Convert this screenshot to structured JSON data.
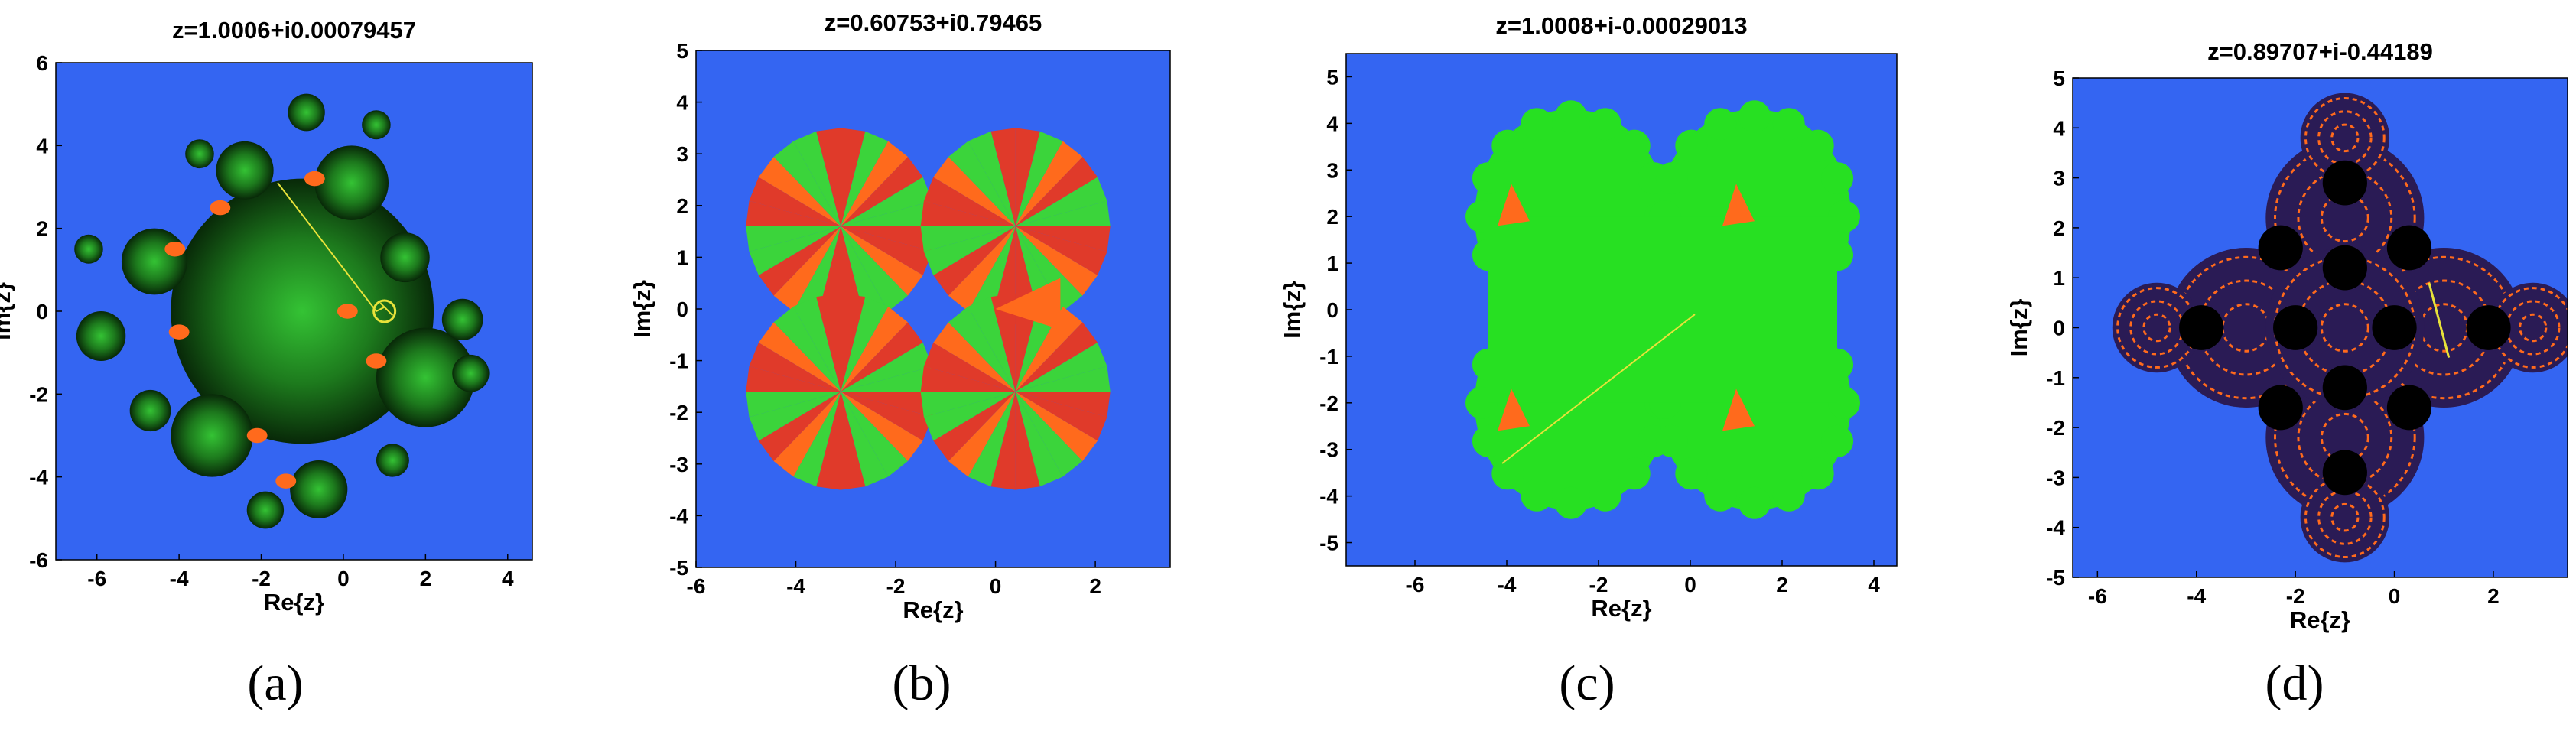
{
  "chart_data": [
    {
      "type": "heatmap",
      "title": "z=1.0006+i0.00079457",
      "xlabel": "Re{z}",
      "ylabel": "Im{z}",
      "xlim": [
        -7,
        4.6
      ],
      "ylim": [
        -6,
        6
      ],
      "xticks": [
        "-6",
        "-4",
        "-2",
        "0",
        "2",
        "4"
      ],
      "yticks": [
        "-6",
        "-4",
        "-2",
        "0",
        "2",
        "4",
        "6"
      ],
      "caption": "(a)",
      "colors": {
        "background": "#3465f2",
        "fractal_dark": "#082808",
        "fractal_light": "#34c334",
        "basin_orange": "#ff6a1c",
        "orbit": "#e7e23a"
      }
    },
    {
      "type": "heatmap",
      "title": "z=0.60753+i0.79465",
      "xlabel": "Re{z}",
      "ylabel": "Im{z}",
      "xlim": [
        -6,
        3.5
      ],
      "ylim": [
        -5,
        5
      ],
      "xticks": [
        "-6",
        "-4",
        "-2",
        "0",
        "2"
      ],
      "yticks": [
        "-5",
        "-4",
        "-3",
        "-2",
        "-1",
        "0",
        "1",
        "2",
        "3",
        "4",
        "5"
      ],
      "caption": "(b)",
      "colors": {
        "background": "#3465f2",
        "basin_red": "#e03a2a",
        "basin_green": "#3bd43b",
        "basin_orange": "#ff6a1c"
      }
    },
    {
      "type": "heatmap",
      "title": "z=1.0008+i-0.00029013",
      "xlabel": "Re{z}",
      "ylabel": "Im{z}",
      "xlim": [
        -7.5,
        4.5
      ],
      "ylim": [
        -5.5,
        5.5
      ],
      "xticks": [
        "-6",
        "-4",
        "-2",
        "0",
        "2",
        "4"
      ],
      "yticks": [
        "-5",
        "-4",
        "-3",
        "-2",
        "-1",
        "0",
        "1",
        "2",
        "3",
        "4",
        "5"
      ],
      "caption": "(c)",
      "colors": {
        "background": "#3465f2",
        "basin_green": "#27e022",
        "basin_orange": "#ff6a1c",
        "orbit": "#e7e23a"
      }
    },
    {
      "type": "heatmap",
      "title": "z=0.89707+i-0.44189",
      "xlabel": "Re{z}",
      "ylabel": "Im{z}",
      "xlim": [
        -6.5,
        3.5
      ],
      "ylim": [
        -5,
        5
      ],
      "xticks": [
        "-6",
        "-4",
        "-2",
        "0",
        "2"
      ],
      "yticks": [
        "-5",
        "-4",
        "-3",
        "-2",
        "-1",
        "0",
        "1",
        "2",
        "3",
        "4",
        "5"
      ],
      "caption": "(d)",
      "colors": {
        "background": "#3465f2",
        "fractal_black": "#000000",
        "basin_orange": "#ff6a1c",
        "orbit": "#e7e23a"
      }
    }
  ]
}
